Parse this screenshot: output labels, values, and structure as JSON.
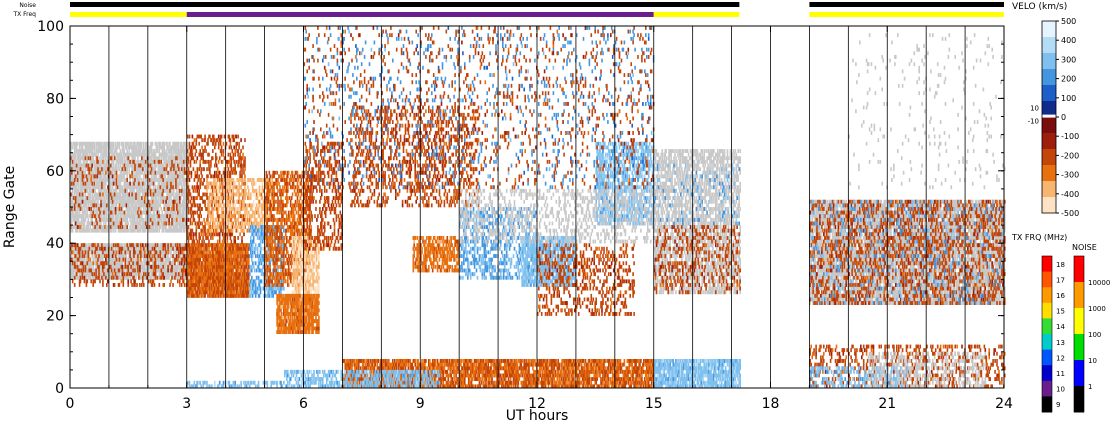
{
  "chart_data": {
    "type": "heatmap",
    "xlabel": "UT hours",
    "ylabel": "Range Gate",
    "xlim": [
      0,
      24
    ],
    "ylim": [
      0,
      100
    ],
    "x_ticks": [
      0,
      3,
      6,
      9,
      12,
      15,
      18,
      21,
      24
    ],
    "y_ticks": [
      0,
      20,
      40,
      60,
      80,
      100
    ],
    "grid": "vertical lines at scan boundaries",
    "status_bars": {
      "noise_label": "Noise",
      "txfreq_label": "TX Freq",
      "noise_segments": [
        {
          "start": 0,
          "end": 17.2,
          "color": "#000000"
        },
        {
          "start": 19.0,
          "end": 24,
          "color": "#000000"
        }
      ],
      "txfreq_segments": [
        {
          "start": 0,
          "end": 3.0,
          "color": "#ffff00"
        },
        {
          "start": 3.0,
          "end": 15.0,
          "color": "#6a1d8c"
        },
        {
          "start": 15.0,
          "end": 17.2,
          "color": "#ffff00"
        },
        {
          "start": 19.0,
          "end": 24,
          "color": "#ffff00"
        }
      ]
    },
    "scan_boundaries": [
      1.0,
      2.0,
      3.0,
      4.0,
      5.0,
      6.0,
      7.0,
      8.0,
      9.0,
      10.0,
      11.0,
      12.0,
      13.0,
      14.0,
      15.0,
      16.0,
      17.0,
      18.0,
      19.0,
      20.0,
      21.0,
      22.0,
      23.0
    ],
    "data_gap": [
      17.2,
      19.0
    ],
    "ground_scatter_color": "#c8c8c8",
    "regions": [
      {
        "kind": "ground",
        "t0": 0.0,
        "t1": 3.0,
        "g0": 30,
        "g1": 40,
        "density": 0.85
      },
      {
        "kind": "ground",
        "t0": 0.0,
        "t1": 3.0,
        "g0": 43,
        "g1": 68,
        "density": 0.8
      },
      {
        "kind": "vel",
        "value": -250,
        "t0": 0.0,
        "t1": 3.0,
        "g0": 28,
        "g1": 40,
        "density": 0.25
      },
      {
        "kind": "vel",
        "value": -250,
        "t0": 0.0,
        "t1": 3.0,
        "g0": 44,
        "g1": 64,
        "density": 0.12
      },
      {
        "kind": "vel",
        "value": -300,
        "t0": 3.0,
        "t1": 4.6,
        "g0": 25,
        "g1": 40,
        "density": 0.9
      },
      {
        "kind": "vel",
        "value": -250,
        "t0": 3.0,
        "t1": 4.5,
        "g0": 40,
        "g1": 70,
        "density": 0.35
      },
      {
        "kind": "vel",
        "value": -450,
        "t0": 3.5,
        "t1": 5.2,
        "g0": 43,
        "g1": 58,
        "density": 0.45
      },
      {
        "kind": "vel",
        "value": 200,
        "t0": 4.6,
        "t1": 5.5,
        "g0": 25,
        "g1": 45,
        "density": 0.5
      },
      {
        "kind": "vel",
        "value": -300,
        "t0": 5.0,
        "t1": 6.2,
        "g0": 28,
        "g1": 60,
        "density": 0.5
      },
      {
        "kind": "vel",
        "value": -500,
        "t0": 5.7,
        "t1": 6.4,
        "g0": 22,
        "g1": 42,
        "density": 0.7
      },
      {
        "kind": "vel",
        "value": -350,
        "t0": 5.3,
        "t1": 6.4,
        "g0": 15,
        "g1": 26,
        "density": 0.85
      },
      {
        "kind": "vel",
        "value": -250,
        "t0": 6.0,
        "t1": 7.0,
        "g0": 38,
        "g1": 68,
        "density": 0.3
      },
      {
        "kind": "vel",
        "value": -250,
        "t0": 7.2,
        "t1": 10.5,
        "g0": 50,
        "g1": 78,
        "density": 0.25
      },
      {
        "kind": "vel",
        "value": -350,
        "t0": 8.8,
        "t1": 10.0,
        "g0": 32,
        "g1": 42,
        "density": 0.55
      },
      {
        "kind": "vel",
        "value": 200,
        "t0": 10.0,
        "t1": 12.0,
        "g0": 30,
        "g1": 50,
        "density": 0.35
      },
      {
        "kind": "vel",
        "value": 250,
        "t0": 11.6,
        "t1": 13.0,
        "g0": 28,
        "g1": 42,
        "density": 0.7
      },
      {
        "kind": "vel",
        "value": -250,
        "t0": 12.0,
        "t1": 14.5,
        "g0": 20,
        "g1": 40,
        "density": 0.25
      },
      {
        "kind": "vel",
        "value": 250,
        "t0": 13.5,
        "t1": 15.0,
        "g0": 45,
        "g1": 68,
        "density": 0.55
      },
      {
        "kind": "ground",
        "t0": 10.0,
        "t1": 15.0,
        "g0": 40,
        "g1": 55,
        "density": 0.25
      },
      {
        "kind": "vel",
        "value": 150,
        "t0": 6.0,
        "t1": 15.0,
        "g0": 55,
        "g1": 100,
        "density": 0.05
      },
      {
        "kind": "vel",
        "value": -250,
        "t0": 6.0,
        "t1": 15.0,
        "g0": 55,
        "g1": 100,
        "density": 0.06
      },
      {
        "kind": "ground",
        "t0": 15.0,
        "t1": 17.2,
        "g0": 26,
        "g1": 66,
        "density": 0.55
      },
      {
        "kind": "vel",
        "value": -250,
        "t0": 15.0,
        "t1": 17.2,
        "g0": 26,
        "g1": 45,
        "density": 0.2
      },
      {
        "kind": "vel",
        "value": 200,
        "t0": 15.0,
        "t1": 17.2,
        "g0": 45,
        "g1": 62,
        "density": 0.08
      },
      {
        "kind": "ground",
        "t0": 19.0,
        "t1": 24.0,
        "g0": 23,
        "g1": 52,
        "density": 0.75
      },
      {
        "kind": "vel",
        "value": -250,
        "t0": 19.0,
        "t1": 24.0,
        "g0": 23,
        "g1": 52,
        "density": 0.3
      },
      {
        "kind": "vel",
        "value": 200,
        "t0": 19.0,
        "t1": 24.0,
        "g0": 23,
        "g1": 52,
        "density": 0.08
      },
      {
        "kind": "ground",
        "t0": 20.0,
        "t1": 24.0,
        "g0": 55,
        "g1": 98,
        "density": 0.03
      },
      {
        "kind": "vel",
        "value": -250,
        "t0": 19.0,
        "t1": 24.0,
        "g0": 0,
        "g1": 12,
        "density": 0.25
      },
      {
        "kind": "vel",
        "value": 250,
        "t0": 19.0,
        "t1": 21.5,
        "g0": 0,
        "g1": 6,
        "density": 0.35
      },
      {
        "kind": "ground",
        "t0": 20.5,
        "t1": 23.5,
        "g0": 0,
        "g1": 10,
        "density": 0.25
      },
      {
        "kind": "vel",
        "value": -300,
        "t0": 7.0,
        "t1": 15.0,
        "g0": 0,
        "g1": 8,
        "density": 0.75
      },
      {
        "kind": "vel",
        "value": 250,
        "t0": 5.5,
        "t1": 9.5,
        "g0": 0,
        "g1": 5,
        "density": 0.5
      },
      {
        "kind": "vel",
        "value": 250,
        "t0": 15.0,
        "t1": 17.2,
        "g0": 0,
        "g1": 8,
        "density": 0.75
      },
      {
        "kind": "vel",
        "value": 250,
        "t0": 3.0,
        "t1": 5.5,
        "g0": 0,
        "g1": 2,
        "density": 0.4
      }
    ],
    "velocity_colorbar": {
      "title": "VELO (km/s)",
      "ticks": [
        500,
        400,
        300,
        200,
        100,
        0,
        -100,
        -200,
        -300,
        -400,
        -500
      ],
      "side_labels": [
        "10",
        "-10"
      ],
      "colors": [
        "#e6f4ff",
        "#b3dcf5",
        "#7fc0ee",
        "#4596e0",
        "#1c5fc8",
        "#102b8c",
        "#7a0d0d",
        "#9c1f0c",
        "#c44509",
        "#e8700e",
        "#f7b572",
        "#fde3c3"
      ]
    },
    "txfreq_colorbar": {
      "title": "TX FRQ (MHz)",
      "ticks": [
        18,
        17,
        16,
        15,
        14,
        13,
        12,
        11,
        10,
        9
      ],
      "colors": [
        "#ff0000",
        "#ff5500",
        "#ff9900",
        "#ffdd00",
        "#33dd33",
        "#00cccc",
        "#0055ff",
        "#0000cc",
        "#6a1d8c",
        "#000000"
      ]
    },
    "noise_colorbar": {
      "title": "NOISE",
      "ticks": [
        10000,
        1000,
        100,
        10,
        1
      ],
      "colors": [
        "#ff0000",
        "#ff9900",
        "#ffff00",
        "#00dd00",
        "#0000ff",
        "#000000"
      ]
    }
  }
}
